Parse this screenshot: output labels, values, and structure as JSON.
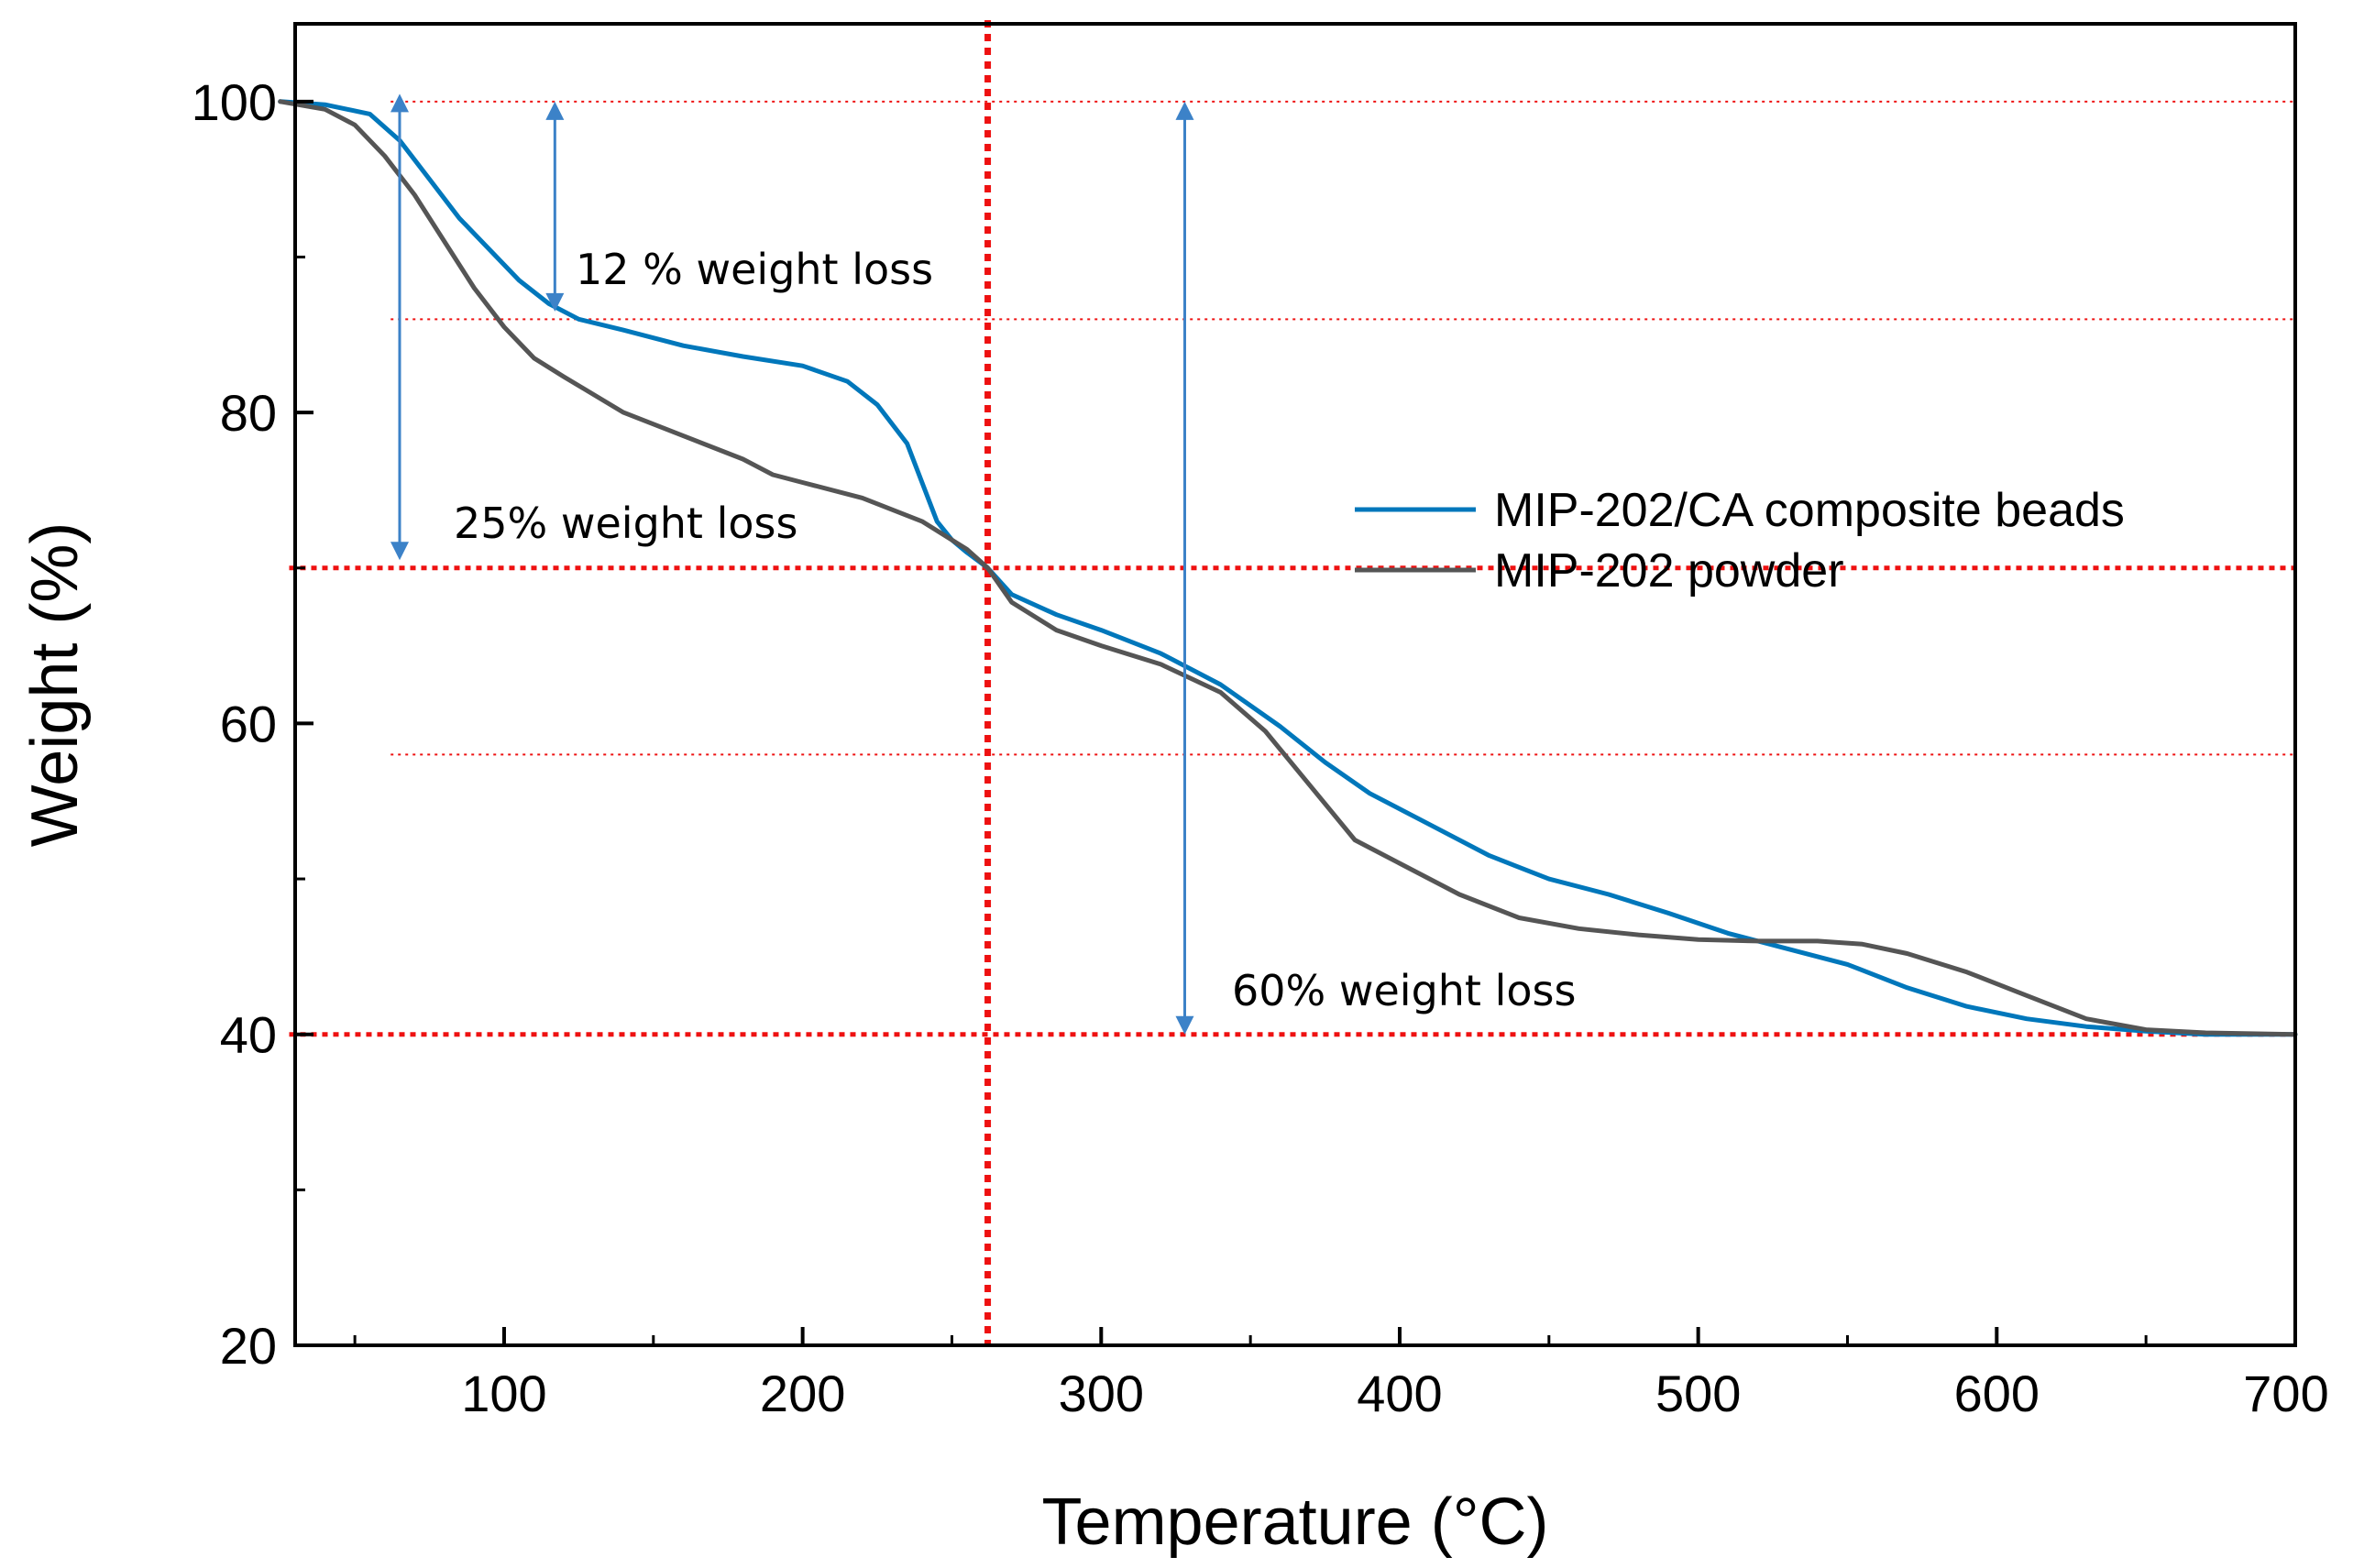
{
  "chart_data": {
    "type": "line",
    "title": "",
    "xlabel": "Temperature (°C)",
    "ylabel": "Weight (%)",
    "xlim": [
      25,
      700
    ],
    "ylim": [
      20,
      105
    ],
    "x_ticks": [
      100,
      200,
      300,
      400,
      500,
      600,
      700
    ],
    "y_ticks": [
      20,
      40,
      60,
      80,
      100
    ],
    "x_minor_step": 50,
    "y_minor_step": 10,
    "grid": false,
    "legend_position": "center-right",
    "series": [
      {
        "name": "MIP-202/CA composite beads",
        "color": "#0077bb",
        "x": [
          25,
          40,
          55,
          65,
          75,
          85,
          95,
          105,
          115,
          125,
          140,
          160,
          180,
          200,
          215,
          225,
          235,
          240,
          245,
          250,
          255,
          262,
          270,
          285,
          300,
          320,
          340,
          360,
          375,
          390,
          410,
          430,
          450,
          470,
          490,
          510,
          530,
          550,
          570,
          590,
          610,
          630,
          650,
          670,
          700
        ],
        "values": [
          100,
          99.8,
          99.2,
          97.5,
          95.0,
          92.5,
          90.5,
          88.5,
          87.0,
          86.0,
          85.3,
          84.3,
          83.6,
          83.0,
          82.0,
          80.5,
          78.0,
          75.5,
          73.0,
          71.8,
          71.0,
          70.0,
          68.3,
          67.0,
          66.0,
          64.5,
          62.5,
          59.8,
          57.5,
          55.5,
          53.5,
          51.5,
          50.0,
          49.0,
          47.8,
          46.5,
          45.5,
          44.5,
          43.0,
          41.8,
          41.0,
          40.5,
          40.2,
          40.0,
          40.0
        ]
      },
      {
        "name": "MIP-202 powder",
        "color": "#555555",
        "x": [
          25,
          40,
          50,
          60,
          70,
          80,
          90,
          100,
          110,
          120,
          140,
          160,
          180,
          190,
          200,
          220,
          240,
          255,
          262,
          270,
          285,
          300,
          320,
          340,
          355,
          370,
          385,
          400,
          420,
          440,
          460,
          480,
          500,
          520,
          540,
          555,
          570,
          590,
          610,
          630,
          650,
          670,
          700
        ],
        "values": [
          100,
          99.5,
          98.5,
          96.5,
          94.0,
          91.0,
          88.0,
          85.5,
          83.5,
          82.3,
          80.0,
          78.5,
          77.0,
          76.0,
          75.5,
          74.5,
          73.0,
          71.2,
          70.0,
          67.8,
          66.0,
          65.0,
          63.8,
          62.0,
          59.5,
          56.0,
          52.5,
          51.0,
          49.0,
          47.5,
          46.8,
          46.4,
          46.1,
          46.0,
          46.0,
          45.8,
          45.2,
          44.0,
          42.5,
          41.0,
          40.3,
          40.1,
          40.0
        ]
      }
    ],
    "reference_lines": {
      "horizontal": [
        100,
        86,
        70,
        58,
        40
      ],
      "vertical": [
        262
      ]
    },
    "arrows": [
      {
        "x": 65,
        "from": 100.5,
        "to": 70.5
      },
      {
        "x": 117,
        "from": 100,
        "to": 86.5
      },
      {
        "x": 328,
        "from": 100,
        "to": 40
      }
    ],
    "annotations": [
      {
        "text": "12 % weight loss",
        "x": 122,
        "y": 88.5
      },
      {
        "text": "25% weight loss",
        "x": 78,
        "y": 72.6
      },
      {
        "text": "60% weight loss",
        "x": 370,
        "y": 42.5
      }
    ],
    "colors": {
      "reference": "#ee1111",
      "arrow": "#3c82c8",
      "axis": "#000000"
    }
  }
}
